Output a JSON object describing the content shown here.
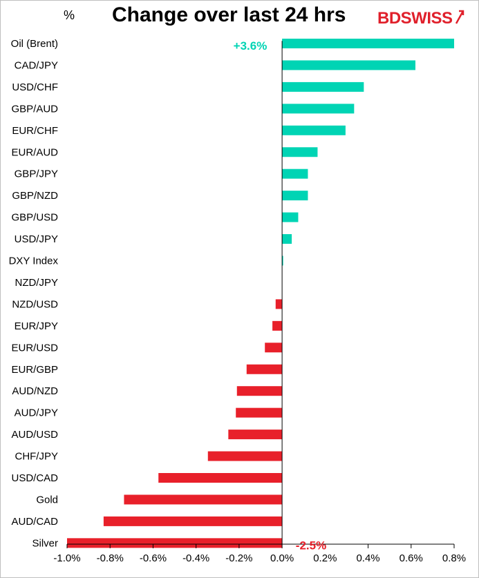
{
  "header": {
    "unit": "%",
    "title": "Change over last 24 hrs",
    "logo": "BDSWISS",
    "logo_bd": "BD",
    "logo_swiss": "SWISS"
  },
  "colors": {
    "positive": "#00d4b4",
    "negative": "#e8202a",
    "logo": "#e0202b"
  },
  "chart_data": {
    "type": "bar",
    "orientation": "horizontal",
    "title": "Change over last 24 hrs",
    "ylabel": "%",
    "xlim": [
      -1.0,
      0.8
    ],
    "x_ticks": [
      "-1.0%",
      "-0.8%",
      "-0.6%",
      "-0.4%",
      "-0.2%",
      "0.0%",
      "0.2%",
      "0.4%",
      "0.6%",
      "0.8%"
    ],
    "x_tick_values": [
      -1.0,
      -0.8,
      -0.6,
      -0.4,
      -0.2,
      0.0,
      0.2,
      0.4,
      0.6,
      0.8
    ],
    "categories": [
      "Oil (Brent)",
      "CAD/JPY",
      "USD/CHF",
      "GBP/AUD",
      "EUR/CHF",
      "EUR/AUD",
      "GBP/JPY",
      "GBP/NZD",
      "GBP/USD",
      "USD/JPY",
      "DXY Index",
      "NZD/JPY",
      "NZD/USD",
      "EUR/JPY",
      "EUR/USD",
      "EUR/GBP",
      "AUD/NZD",
      "AUD/JPY",
      "AUD/USD",
      "CHF/JPY",
      "USD/CAD",
      "Gold",
      "AUD/CAD",
      "Silver"
    ],
    "values": [
      0.8,
      0.62,
      0.38,
      0.335,
      0.295,
      0.165,
      0.12,
      0.12,
      0.075,
      0.045,
      0.005,
      0.0,
      -0.03,
      -0.045,
      -0.08,
      -0.165,
      -0.21,
      -0.215,
      -0.25,
      -0.345,
      -0.575,
      -0.735,
      -0.83,
      -1.0
    ],
    "annotations": [
      {
        "category": "Oil (Brent)",
        "text": "+3.6%"
      },
      {
        "category": "Silver",
        "text": "-2.5%"
      }
    ],
    "grid": false,
    "legend": "none"
  }
}
